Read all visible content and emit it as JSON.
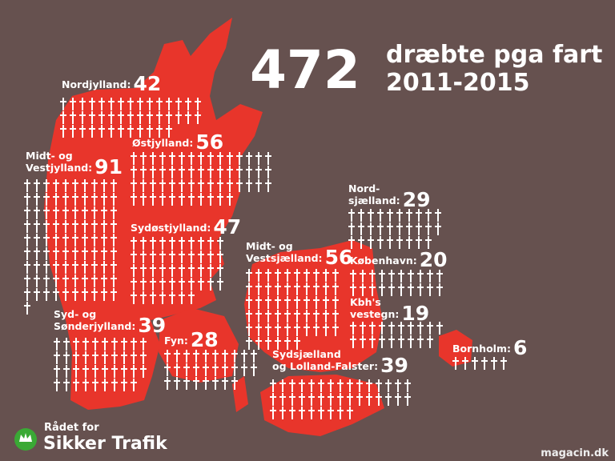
{
  "header": {
    "total": "472",
    "title_lines": [
      "dræbte pga fart",
      "2011-2015"
    ]
  },
  "regions": [
    {
      "name_lines": [
        "Nordjylland:"
      ],
      "count": 42
    },
    {
      "name_lines": [
        "Østjylland:"
      ],
      "count": 56
    },
    {
      "name_lines": [
        "Midt- og",
        "Vestjylland:"
      ],
      "count": 91
    },
    {
      "name_lines": [
        "Sydøstjylland:"
      ],
      "count": 47
    },
    {
      "name_lines": [
        "Syd- og",
        "Sønderjylland:"
      ],
      "count": 39
    },
    {
      "name_lines": [
        "Fyn:"
      ],
      "count": 28
    },
    {
      "name_lines": [
        "Midt- og",
        "Vestsjælland:"
      ],
      "count": 56
    },
    {
      "name_lines": [
        "Nord-",
        "sjælland:"
      ],
      "count": 29
    },
    {
      "name_lines": [
        "København:"
      ],
      "count": 20
    },
    {
      "name_lines": [
        "Kbh's",
        "vestegn:"
      ],
      "count": 19
    },
    {
      "name_lines": [
        "Bornholm:"
      ],
      "count": 6
    },
    {
      "name_lines": [
        "Sydsjælland",
        "og Lolland-Falster:"
      ],
      "count": 39
    }
  ],
  "logo": {
    "line1": "Rådet for",
    "line2": "Sikker Trafik"
  },
  "watermark": "magacin.dk"
}
